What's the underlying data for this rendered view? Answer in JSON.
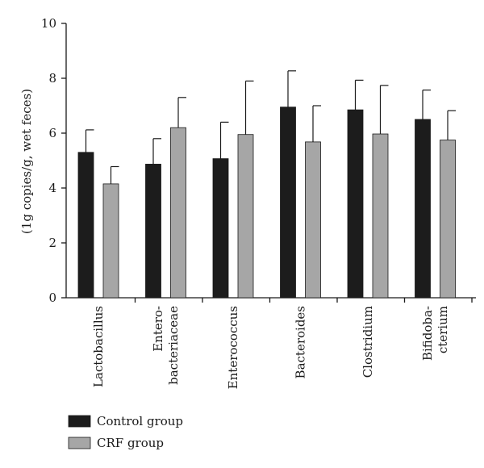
{
  "chart_data": {
    "type": "bar",
    "categories": [
      [
        "Lactobacillus"
      ],
      [
        "Entero-",
        "bacteriaceae"
      ],
      [
        "Enterococcus"
      ],
      [
        "Bacteroides"
      ],
      [
        "Clostridium"
      ],
      [
        "Bifidoba-",
        "cterium"
      ]
    ],
    "series": [
      {
        "name": "Control group",
        "color": "#1c1c1c",
        "values": [
          5.3,
          4.87,
          5.07,
          6.95,
          6.85,
          6.5
        ],
        "errors": [
          0.82,
          0.93,
          1.33,
          1.32,
          1.08,
          1.07
        ]
      },
      {
        "name": "CRF group",
        "color": "#a6a6a6",
        "values": [
          4.15,
          6.2,
          5.95,
          5.68,
          5.97,
          5.75
        ],
        "errors": [
          0.63,
          1.1,
          1.95,
          1.32,
          1.77,
          1.07
        ]
      }
    ],
    "ylabel": "(1g copies/g, wet feces)",
    "xlabel": "",
    "title": "",
    "ylim": [
      0,
      10
    ],
    "yticks": [
      0,
      2,
      4,
      6,
      8,
      10
    ],
    "legend_position": "bottom-left",
    "grid": false
  }
}
